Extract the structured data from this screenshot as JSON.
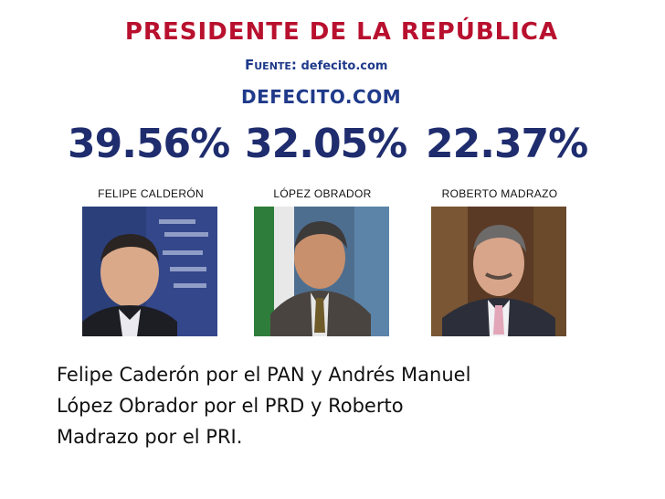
{
  "header": {
    "title": "PRESIDENTE DE LA REPÚBLICA",
    "source_label": "Fuente:",
    "source_value": "defecito.com",
    "brand": "DEFECITO.COM"
  },
  "candidates": [
    {
      "percentage": "39.56%",
      "name": "FELIPE CALDERÓN"
    },
    {
      "percentage": "32.05%",
      "name": "LÓPEZ OBRADOR"
    },
    {
      "percentage": "22.37%",
      "name": "ROBERTO MADRAZO"
    }
  ],
  "caption": {
    "line1": "Felipe Caderón por el PAN y Andrés Manuel",
    "line2": "López Obrador por el PRD y Roberto",
    "line3": "Madrazo por el PRI."
  }
}
